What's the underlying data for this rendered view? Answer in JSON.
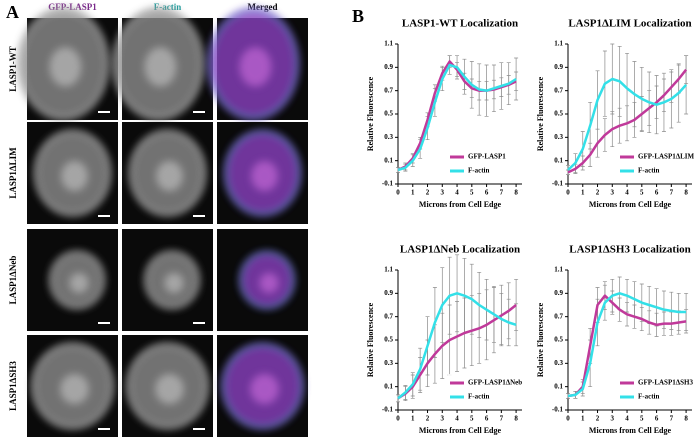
{
  "panel_a": {
    "label": "A",
    "columns": [
      "GFP-LASP1",
      "F-actin",
      "Merged"
    ],
    "rows": [
      "LASP1-WT",
      "LASP1ΔLIM",
      "LASP1ΔNeb",
      "LASP1ΔSH3"
    ]
  },
  "panel_b_label": "B",
  "chart_data": [
    {
      "type": "line",
      "title": "LASP1-WT Localization",
      "x_label": "Microns from Cell Edge",
      "y_label": "Relative Fluorescence",
      "x": [
        0,
        0.5,
        1,
        1.5,
        2,
        2.5,
        3,
        3.5,
        4,
        4.5,
        5,
        5.5,
        6,
        6.5,
        7,
        7.5,
        8
      ],
      "xlim": [
        0,
        8.4
      ],
      "xticks": [
        0,
        1,
        2,
        3,
        4,
        5,
        6,
        7,
        8
      ],
      "ylim": [
        -0.1,
        1.1
      ],
      "yticks": [
        -0.1,
        0.1,
        0.3,
        0.5,
        0.7,
        0.9,
        1.1
      ],
      "legend": "lower right",
      "error_color": "#8a8a8a",
      "series": [
        {
          "name": "GFP-LASP1",
          "color": "#c0399a",
          "values": [
            0.02,
            0.05,
            0.12,
            0.25,
            0.45,
            0.68,
            0.85,
            0.95,
            0.88,
            0.78,
            0.72,
            0.7,
            0.7,
            0.71,
            0.73,
            0.75,
            0.78
          ],
          "errors": [
            0.02,
            0.03,
            0.04,
            0.05,
            0.06,
            0.07,
            0.06,
            0.05,
            0.06,
            0.07,
            0.08,
            0.08,
            0.08,
            0.08,
            0.08,
            0.08,
            0.08
          ]
        },
        {
          "name": "F-actin",
          "color": "#33e0e8",
          "values": [
            0.02,
            0.04,
            0.1,
            0.2,
            0.38,
            0.6,
            0.8,
            0.92,
            0.9,
            0.82,
            0.75,
            0.71,
            0.7,
            0.72,
            0.74,
            0.76,
            0.8
          ],
          "errors": [
            0.02,
            0.03,
            0.05,
            0.08,
            0.1,
            0.12,
            0.1,
            0.08,
            0.1,
            0.15,
            0.2,
            0.22,
            0.22,
            0.2,
            0.2,
            0.18,
            0.18
          ]
        }
      ]
    },
    {
      "type": "line",
      "title": "LASP1ΔLIM Localization",
      "x_label": "Microns from Cell Edge",
      "y_label": "Relative Fluorescence",
      "x": [
        0,
        0.5,
        1,
        1.5,
        2,
        2.5,
        3,
        3.5,
        4,
        4.5,
        5,
        5.5,
        6,
        6.5,
        7,
        7.5,
        8
      ],
      "xlim": [
        0,
        8.4
      ],
      "xticks": [
        0,
        1,
        2,
        3,
        4,
        5,
        6,
        7,
        8
      ],
      "ylim": [
        -0.1,
        1.1
      ],
      "yticks": [
        -0.1,
        0.1,
        0.3,
        0.5,
        0.7,
        0.9,
        1.1
      ],
      "legend": "lower right",
      "error_color": "#8a8a8a",
      "series": [
        {
          "name": "GFP-LASP1ΔLIM",
          "color": "#c0399a",
          "values": [
            0.0,
            0.03,
            0.08,
            0.15,
            0.25,
            0.32,
            0.37,
            0.4,
            0.42,
            0.45,
            0.5,
            0.55,
            0.6,
            0.66,
            0.73,
            0.8,
            0.88
          ],
          "errors": [
            0.02,
            0.04,
            0.06,
            0.1,
            0.12,
            0.14,
            0.15,
            0.15,
            0.15,
            0.15,
            0.15,
            0.15,
            0.14,
            0.14,
            0.13,
            0.12,
            0.12
          ]
        },
        {
          "name": "F-actin",
          "color": "#33e0e8",
          "values": [
            0.02,
            0.08,
            0.2,
            0.4,
            0.62,
            0.76,
            0.8,
            0.78,
            0.72,
            0.67,
            0.63,
            0.6,
            0.58,
            0.6,
            0.63,
            0.68,
            0.75
          ],
          "errors": [
            0.04,
            0.08,
            0.15,
            0.2,
            0.25,
            0.28,
            0.3,
            0.3,
            0.3,
            0.28,
            0.27,
            0.26,
            0.25,
            0.25,
            0.25,
            0.25,
            0.25
          ]
        }
      ]
    },
    {
      "type": "line",
      "title": "LASP1ΔNeb Localization",
      "x_label": "Microns from Cell Edge",
      "y_label": "Relative Fluorescence",
      "x": [
        0,
        0.5,
        1,
        1.5,
        2,
        2.5,
        3,
        3.5,
        4,
        4.5,
        5,
        5.5,
        6,
        6.5,
        7,
        7.5,
        8
      ],
      "xlim": [
        0,
        8.4
      ],
      "xticks": [
        0,
        1,
        2,
        3,
        4,
        5,
        6,
        7,
        8
      ],
      "ylim": [
        -0.1,
        1.1
      ],
      "yticks": [
        -0.1,
        0.1,
        0.3,
        0.5,
        0.7,
        0.9,
        1.1
      ],
      "legend": "lower right",
      "error_color": "#8a8a8a",
      "series": [
        {
          "name": "GFP-LASP1ΔNeb",
          "color": "#c0399a",
          "values": [
            0.0,
            0.04,
            0.1,
            0.2,
            0.3,
            0.38,
            0.45,
            0.5,
            0.53,
            0.56,
            0.58,
            0.6,
            0.63,
            0.67,
            0.71,
            0.75,
            0.8
          ],
          "errors": [
            0.03,
            0.06,
            0.1,
            0.15,
            0.2,
            0.25,
            0.28,
            0.3,
            0.3,
            0.3,
            0.3,
            0.3,
            0.3,
            0.28,
            0.26,
            0.24,
            0.22
          ]
        },
        {
          "name": "F-actin",
          "color": "#33e0e8",
          "values": [
            0.0,
            0.05,
            0.12,
            0.25,
            0.45,
            0.65,
            0.8,
            0.88,
            0.9,
            0.88,
            0.85,
            0.8,
            0.76,
            0.72,
            0.68,
            0.65,
            0.63
          ],
          "errors": [
            0.03,
            0.06,
            0.1,
            0.18,
            0.25,
            0.3,
            0.32,
            0.33,
            0.33,
            0.32,
            0.3,
            0.28,
            0.26,
            0.24,
            0.22,
            0.2,
            0.18
          ]
        }
      ]
    },
    {
      "type": "line",
      "title": "LASP1ΔSH3 Localization",
      "x_label": "Microns from Cell Edge",
      "y_label": "Relative Fluorescence",
      "x": [
        0,
        0.5,
        1,
        1.5,
        2,
        2.5,
        3,
        3.5,
        4,
        4.5,
        5,
        5.5,
        6,
        6.5,
        7,
        7.5,
        8
      ],
      "xlim": [
        0,
        8.4
      ],
      "xticks": [
        0,
        1,
        2,
        3,
        4,
        5,
        6,
        7,
        8
      ],
      "ylim": [
        -0.1,
        1.1
      ],
      "yticks": [
        -0.1,
        0.1,
        0.3,
        0.5,
        0.7,
        0.9,
        1.1
      ],
      "legend": "lower right",
      "error_color": "#8a8a8a",
      "series": [
        {
          "name": "GFP-LASP1ΔSH3",
          "color": "#c0399a",
          "values": [
            0.02,
            0.03,
            0.1,
            0.45,
            0.8,
            0.88,
            0.82,
            0.76,
            0.72,
            0.7,
            0.68,
            0.65,
            0.63,
            0.64,
            0.64,
            0.65,
            0.66
          ],
          "errors": [
            0.02,
            0.03,
            0.06,
            0.15,
            0.15,
            0.12,
            0.1,
            0.1,
            0.1,
            0.1,
            0.1,
            0.1,
            0.1,
            0.1,
            0.1,
            0.1,
            0.1
          ]
        },
        {
          "name": "F-actin",
          "color": "#33e0e8",
          "values": [
            0.02,
            0.03,
            0.08,
            0.3,
            0.65,
            0.82,
            0.88,
            0.9,
            0.88,
            0.85,
            0.82,
            0.8,
            0.78,
            0.76,
            0.75,
            0.74,
            0.74
          ],
          "errors": [
            0.02,
            0.03,
            0.06,
            0.2,
            0.2,
            0.15,
            0.14,
            0.14,
            0.14,
            0.15,
            0.16,
            0.16,
            0.16,
            0.16,
            0.16,
            0.16,
            0.16
          ]
        }
      ]
    }
  ]
}
